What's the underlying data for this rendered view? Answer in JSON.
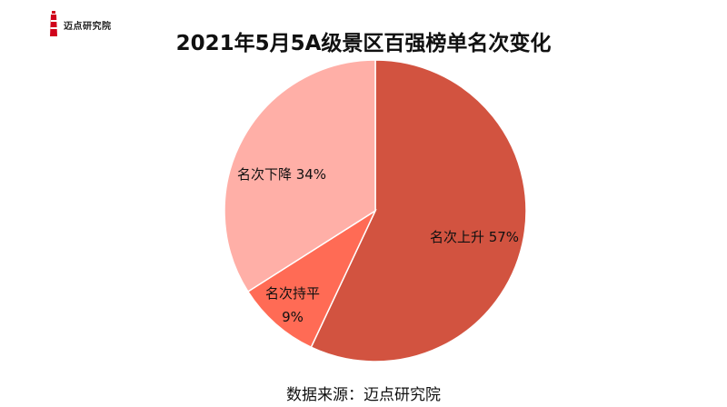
{
  "logo": {
    "brand": "迈点研究院",
    "icon": "lighthouse-icon"
  },
  "chart_data": {
    "type": "pie",
    "title": "2021年5月5A级景区百强榜单名次变化",
    "slices": [
      {
        "label": "名次上升",
        "value": 57,
        "pct": "57%",
        "color": "#D25340"
      },
      {
        "label": "名次持平",
        "value": 9,
        "pct": "9%",
        "color": "#FF6B55"
      },
      {
        "label": "名次下降",
        "value": 34,
        "pct": "34%",
        "color": "#FFAFA7"
      }
    ],
    "legend": "none"
  },
  "source": "数据来源：迈点研究院"
}
